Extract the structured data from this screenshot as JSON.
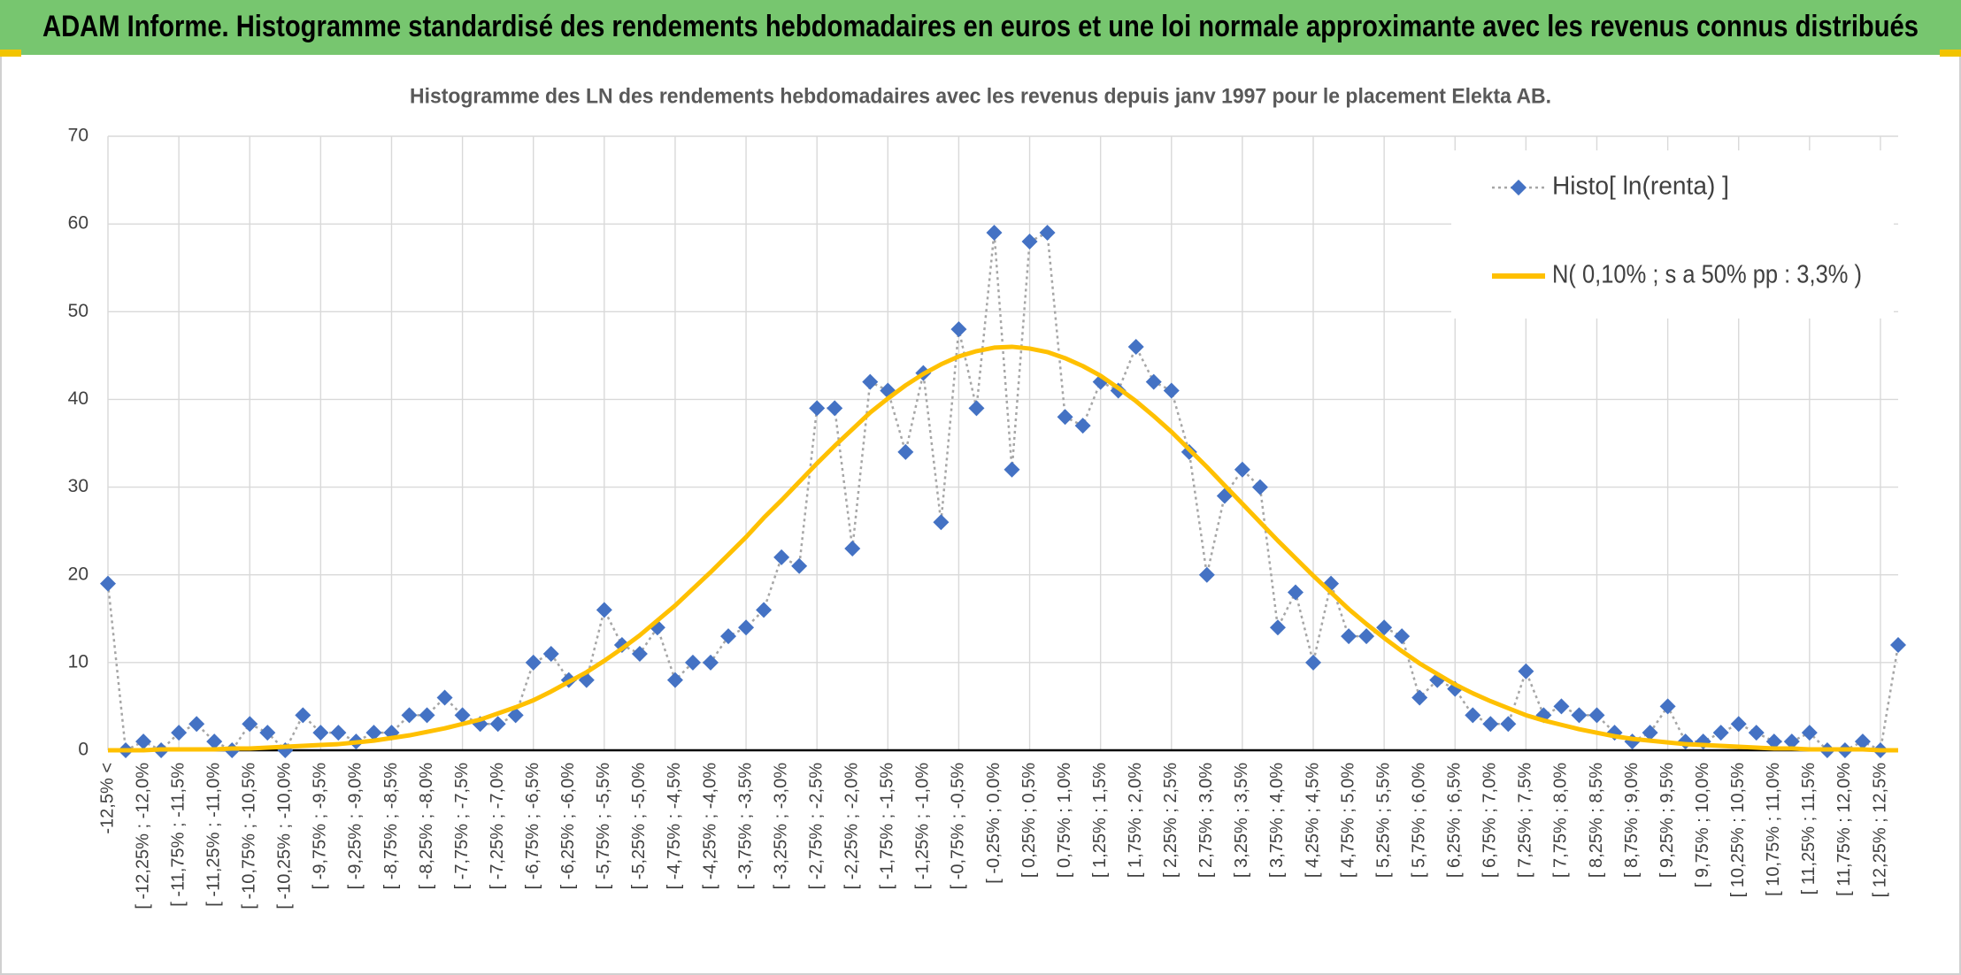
{
  "header": {
    "title": "ADAM Informe. Histogramme standardisé des rendements hebdomadaires en euros et une loi normale approximante avec les revenus connus distribués"
  },
  "chart_data": {
    "type": "line",
    "title": "Histogramme des LN des rendements hebdomadaires avec les revenus depuis janv 1997 pour le placement Elekta AB.",
    "categories": [
      "-12,5% <",
      null,
      "[ -12,25% ; -12,0%",
      null,
      "[ -11,75% ; -11,5%",
      null,
      "[ -11,25% ; -11,0%",
      null,
      "[ -10,75% ; -10,5%",
      null,
      "[ -10,25% ; -10,0%",
      null,
      "[ -9,75% ; -9,5%",
      null,
      "[ -9,25% ; -9,0%",
      null,
      "[ -8,75% ; -8,5%",
      null,
      "[ -8,25% ; -8,0%",
      null,
      "[ -7,75% ; -7,5%",
      null,
      "[ -7,25% ; -7,0%",
      null,
      "[ -6,75% ; -6,5%",
      null,
      "[ -6,25% ; -6,0%",
      null,
      "[ -5,75% ; -5,5%",
      null,
      "[ -5,25% ; -5,0%",
      null,
      "[ -4,75% ; -4,5%",
      null,
      "[ -4,25% ; -4,0%",
      null,
      "[ -3,75% ; -3,5%",
      null,
      "[ -3,25% ; -3,0%",
      null,
      "[ -2,75% ; -2,5%",
      null,
      "[ -2,25% ; -2,0%",
      null,
      "[ -1,75% ; -1,5%",
      null,
      "[ -1,25% ; -1,0%",
      null,
      "[ -0,75% ; -0,5%",
      null,
      "[ -0,25% ; 0,0%",
      null,
      "[ 0,25% ; 0,5%",
      null,
      "[ 0,75% ; 1,0%",
      null,
      "[ 1,25% ; 1,5%",
      null,
      "[ 1,75% ; 2,0%",
      null,
      "[ 2,25% ; 2,5%",
      null,
      "[ 2,75% ; 3,0%",
      null,
      "[ 3,25% ; 3,5%",
      null,
      "[ 3,75% ; 4,0%",
      null,
      "[ 4,25% ; 4,5%",
      null,
      "[ 4,75% ; 5,0%",
      null,
      "[ 5,25% ; 5,5%",
      null,
      "[ 5,75% ; 6,0%",
      null,
      "[ 6,25% ; 6,5%",
      null,
      "[ 6,75% ; 7,0%",
      null,
      "[ 7,25% ; 7,5%",
      null,
      "[ 7,75% ; 8,0%",
      null,
      "[ 8,25% ; 8,5%",
      null,
      "[ 8,75% ; 9,0%",
      null,
      "[ 9,25% ; 9,5%",
      null,
      "[ 9,75% ; 10,0%",
      null,
      "[ 10,25% ; 10,5%",
      null,
      "[ 10,75% ; 11,0%",
      null,
      "[ 11,25% ; 11,5%",
      null,
      "[ 11,75% ; 12,0%",
      null,
      "[ 12,25% ; 12,5%",
      null
    ],
    "series": [
      {
        "name": "Histo[ ln(renta) ]",
        "color": "#4472c4",
        "values": [
          19,
          0,
          1,
          0,
          2,
          3,
          1,
          0,
          3,
          2,
          0,
          4,
          2,
          2,
          1,
          2,
          2,
          4,
          4,
          6,
          4,
          3,
          3,
          4,
          10,
          11,
          8,
          8,
          16,
          12,
          11,
          14,
          8,
          10,
          10,
          13,
          14,
          16,
          22,
          21,
          39,
          39,
          23,
          42,
          41,
          34,
          43,
          26,
          48,
          39,
          59,
          32,
          58,
          59,
          38,
          37,
          42,
          41,
          46,
          42,
          41,
          34,
          20,
          29,
          32,
          30,
          14,
          18,
          10,
          19,
          13,
          13,
          14,
          13,
          6,
          8,
          7,
          4,
          3,
          3,
          9,
          4,
          5,
          4,
          4,
          2,
          1,
          2,
          5,
          1,
          1,
          2,
          3,
          2,
          1,
          1,
          2,
          0,
          0,
          1,
          0,
          12
        ]
      },
      {
        "name": "N( 0,10% ; s a 50% pp : 3,3% )",
        "color": "#ffc000",
        "values": [
          0.0,
          0.0,
          0.0,
          0.1,
          0.1,
          0.1,
          0.1,
          0.2,
          0.2,
          0.3,
          0.4,
          0.5,
          0.6,
          0.7,
          0.9,
          1.1,
          1.4,
          1.7,
          2.1,
          2.5,
          3.0,
          3.5,
          4.2,
          4.9,
          5.7,
          6.7,
          7.8,
          8.9,
          10.2,
          11.6,
          13.1,
          14.8,
          16.5,
          18.4,
          20.3,
          22.3,
          24.3,
          26.5,
          28.5,
          30.6,
          32.7,
          34.7,
          36.6,
          38.5,
          40.1,
          41.6,
          42.9,
          44.0,
          44.9,
          45.5,
          45.9,
          46.0,
          45.8,
          45.4,
          44.7,
          43.8,
          42.7,
          41.3,
          39.8,
          38.1,
          36.3,
          34.3,
          32.3,
          30.2,
          28.1,
          26.0,
          23.9,
          21.9,
          19.9,
          18.0,
          16.1,
          14.4,
          12.8,
          11.3,
          9.9,
          8.7,
          7.5,
          6.5,
          5.6,
          4.8,
          4.0,
          3.4,
          2.9,
          2.4,
          2.0,
          1.6,
          1.3,
          1.1,
          0.9,
          0.7,
          0.6,
          0.5,
          0.4,
          0.3,
          0.2,
          0.2,
          0.1,
          0.1,
          0.1,
          0.1,
          0.0,
          0.0
        ]
      }
    ],
    "ylim": [
      0,
      70
    ],
    "yticks": [
      0,
      10,
      20,
      30,
      40,
      50,
      60,
      70
    ],
    "grid": true,
    "legend": "top-right"
  }
}
